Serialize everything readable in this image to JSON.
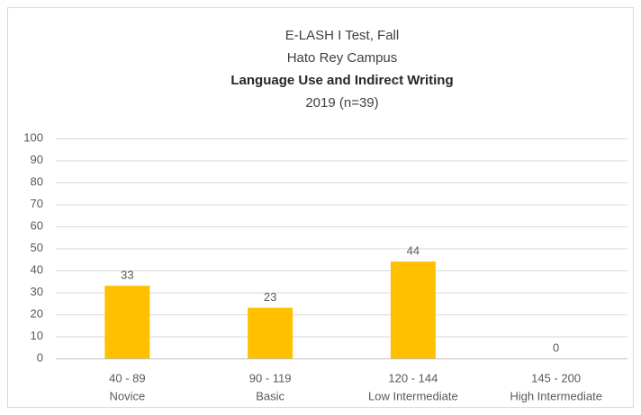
{
  "chart_data": {
    "type": "bar",
    "title": [
      "E-LASH I Test, Fall",
      "Hato Rey Campus",
      "Language Use and Indirect Writing",
      "2019 (n=39)"
    ],
    "categories": [
      [
        "40 - 89",
        "Novice"
      ],
      [
        "90 - 119",
        "Basic"
      ],
      [
        "120 - 144",
        "Low Intermediate"
      ],
      [
        "145 - 200",
        "High Intermediate"
      ]
    ],
    "values": [
      33,
      23,
      44,
      0
    ],
    "color": "#ffc000",
    "ylim": [
      0,
      100
    ],
    "yticks": [
      0,
      10,
      20,
      30,
      40,
      50,
      60,
      70,
      80,
      90,
      100
    ],
    "grid": true
  }
}
